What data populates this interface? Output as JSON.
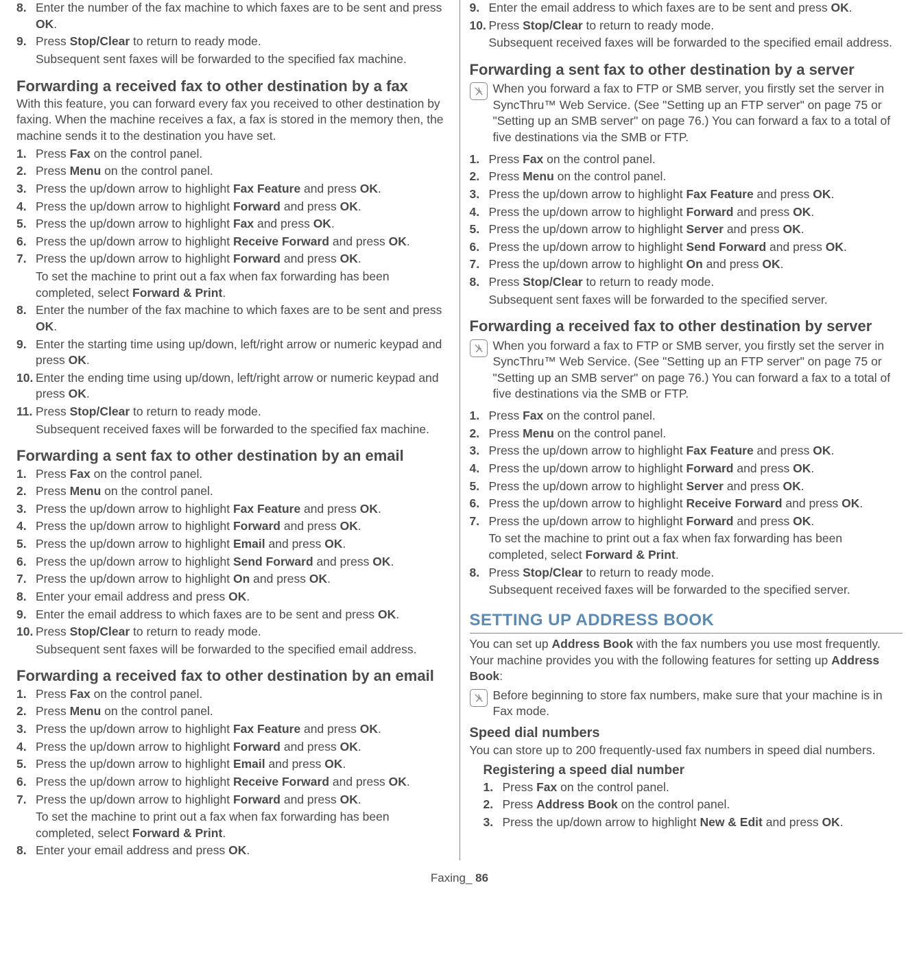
{
  "footer": {
    "label": "Faxing",
    "sep": "_ ",
    "page": "86"
  },
  "colors": {
    "heading_blue": "#5b8bb5",
    "text": "#4a4a4a",
    "rule": "#888888"
  },
  "left": {
    "topSteps": [
      {
        "n": "8.",
        "html": "Enter the number of the fax machine to which faxes are to be sent and press <b>OK</b>."
      },
      {
        "n": "9.",
        "html": "Press <b>Stop/Clear</b> to return to ready mode.",
        "sub": "Subsequent sent faxes will be forwarded to the specified fax machine."
      }
    ],
    "s1": {
      "title": "Forwarding a received fax to other destination by a fax",
      "intro": "With this feature, you can forward every fax you received to other destination by faxing. When the machine receives a fax, a fax is stored in the memory then, the machine sends it to the destination you have set.",
      "steps": [
        {
          "n": "1.",
          "html": "Press <b>Fax</b> on the control panel."
        },
        {
          "n": "2.",
          "html": "Press <b>Menu</b> on the control panel."
        },
        {
          "n": "3.",
          "html": "Press the up/down arrow to highlight <b>Fax Feature</b> and press <b>OK</b>."
        },
        {
          "n": "4.",
          "html": "Press the up/down arrow to highlight <b>Forward</b> and press <b>OK</b>."
        },
        {
          "n": "5.",
          "html": "Press the up/down arrow to highlight <b>Fax</b> and press <b>OK</b>."
        },
        {
          "n": "6.",
          "html": "Press the up/down arrow to highlight <b>Receive Forward</b> and press <b>OK</b>."
        },
        {
          "n": "7.",
          "html": "Press the up/down arrow to highlight <b>Forward</b> and press <b>OK</b>.",
          "sub": "To set the machine to print out a fax when fax forwarding has been completed, select <b>Forward & Print</b>."
        },
        {
          "n": "8.",
          "html": "Enter the number of the fax machine to which faxes are to be sent and press <b>OK</b>."
        },
        {
          "n": "9.",
          "html": "Enter the starting time using up/down, left/right arrow or numeric keypad and press <b>OK</b>."
        },
        {
          "n": "10.",
          "html": "Enter the ending time using up/down, left/right arrow or numeric keypad and press <b>OK</b>."
        },
        {
          "n": "11.",
          "html": "Press <b>Stop/Clear</b> to return to ready mode.",
          "sub": "Subsequent received faxes will be forwarded to the specified fax machine."
        }
      ]
    },
    "s2": {
      "title": "Forwarding a sent fax to other destination by an email",
      "steps": [
        {
          "n": "1.",
          "html": "Press <b>Fax</b> on the control panel."
        },
        {
          "n": "2.",
          "html": "Press <b>Menu</b> on the control panel."
        },
        {
          "n": "3.",
          "html": "Press the up/down arrow to highlight <b>Fax Feature</b> and press <b>OK</b>."
        },
        {
          "n": "4.",
          "html": "Press the up/down arrow to highlight <b>Forward</b> and press <b>OK</b>."
        },
        {
          "n": "5.",
          "html": "Press the up/down arrow to highlight <b>Email</b> and press <b>OK</b>."
        },
        {
          "n": "6.",
          "html": "Press the up/down arrow to highlight <b>Send Forward</b> and press <b>OK</b>."
        },
        {
          "n": "7.",
          "html": "Press the up/down arrow to highlight <b>On</b> and press <b>OK</b>."
        },
        {
          "n": "8.",
          "html": "Enter your email address and press <b>OK</b>."
        },
        {
          "n": "9.",
          "html": "Enter the email address to which faxes are to be sent and press <b>OK</b>."
        },
        {
          "n": "10.",
          "html": "Press <b>Stop/Clear</b> to return to ready mode.",
          "sub": "Subsequent sent faxes will be forwarded to the specified email address."
        }
      ]
    },
    "s3": {
      "title": "Forwarding a received fax to other destination by an email",
      "steps": [
        {
          "n": "1.",
          "html": "Press <b>Fax</b> on the control panel."
        },
        {
          "n": "2.",
          "html": "Press <b>Menu</b> on the control panel."
        },
        {
          "n": "3.",
          "html": "Press the up/down arrow to highlight <b>Fax Feature</b> and press <b>OK</b>."
        },
        {
          "n": "4.",
          "html": "Press the up/down arrow to highlight <b>Forward</b> and press <b>OK</b>."
        },
        {
          "n": "5.",
          "html": "Press the up/down arrow to highlight <b>Email</b> and press <b>OK</b>."
        },
        {
          "n": "6.",
          "html": "Press the up/down arrow to highlight <b>Receive Forward</b> and press <b>OK</b>."
        },
        {
          "n": "7.",
          "html": "Press the up/down arrow to highlight <b>Forward</b> and press <b>OK</b>.",
          "sub": "To set the machine to print out a fax when fax forwarding has been completed, select <b>Forward & Print</b>."
        },
        {
          "n": "8.",
          "html": "Enter your email address and press <b>OK</b>."
        }
      ]
    }
  },
  "right": {
    "topSteps": [
      {
        "n": "9.",
        "html": "Enter the email address to which faxes are to be sent and press <b>OK</b>."
      },
      {
        "n": "10.",
        "html": "Press <b>Stop/Clear</b> to return to ready mode.",
        "sub": "Subsequent received faxes will be forwarded to the specified email address."
      }
    ],
    "s1": {
      "title": "Forwarding a sent fax to other destination by a server",
      "note": "When you forward a fax to FTP or SMB server, you firstly set the server in SyncThru™ Web Service. (See \"Setting up an FTP server\" on page 75 or \"Setting up an SMB server\" on page 76.) You can forward a fax to a total of five destinations via the SMB or FTP.",
      "steps": [
        {
          "n": "1.",
          "html": "Press <b>Fax</b> on the control panel."
        },
        {
          "n": "2.",
          "html": "Press <b>Menu</b> on the control panel."
        },
        {
          "n": "3.",
          "html": "Press the up/down arrow to highlight <b>Fax Feature</b> and press <b>OK</b>."
        },
        {
          "n": "4.",
          "html": "Press the up/down arrow to highlight <b>Forward</b> and press <b>OK</b>."
        },
        {
          "n": "5.",
          "html": "Press the up/down arrow to highlight <b>Server</b> and press <b>OK</b>."
        },
        {
          "n": "6.",
          "html": "Press the up/down arrow to highlight <b>Send Forward</b> and press <b>OK</b>."
        },
        {
          "n": "7.",
          "html": "Press the up/down arrow to highlight <b>On</b> and press <b>OK</b>."
        },
        {
          "n": "8.",
          "html": "Press <b>Stop/Clear</b> to return to ready mode.",
          "sub": "Subsequent sent faxes will be forwarded to the specified server."
        }
      ]
    },
    "s2": {
      "title": "Forwarding a received fax to other destination by server",
      "note": "When you forward a fax to FTP or SMB server, you firstly set the server in SyncThru™ Web Service. (See \"Setting up an FTP server\" on page 75 or \"Setting up an SMB server\" on page 76.) You can forward a fax to a total of five destinations via the SMB or FTP.",
      "steps": [
        {
          "n": "1.",
          "html": "Press <b>Fax</b> on the control panel."
        },
        {
          "n": "2.",
          "html": "Press <b>Menu</b> on the control panel."
        },
        {
          "n": "3.",
          "html": "Press the up/down arrow to highlight <b>Fax Feature</b> and press <b>OK</b>."
        },
        {
          "n": "4.",
          "html": "Press the up/down arrow to highlight <b>Forward</b> and press <b>OK</b>."
        },
        {
          "n": "5.",
          "html": "Press the up/down arrow to highlight <b>Server</b> and press <b>OK</b>."
        },
        {
          "n": "6.",
          "html": "Press the up/down arrow to highlight <b>Receive Forward</b> and press <b>OK</b>."
        },
        {
          "n": "7.",
          "html": "Press the up/down arrow to highlight <b>Forward</b> and press <b>OK</b>.",
          "sub": "To set the machine to print out a fax when fax forwarding has been completed, select <b>Forward & Print</b>."
        },
        {
          "n": "8.",
          "html": "Press <b>Stop/Clear</b> to return to ready mode.",
          "sub": "Subsequent received faxes will be forwarded to the specified server."
        }
      ]
    },
    "major": {
      "title": "SETTING UP ADDRESS BOOK",
      "intro": "You can set up <b>Address Book</b> with the fax numbers you use most frequently. Your machine provides you with the following features for setting up <b>Address Book</b>:",
      "note": "Before beginning to store fax numbers, make sure that your machine is in Fax mode."
    },
    "s3": {
      "title": "Speed dial numbers",
      "intro": "You can store up to 200 frequently-used fax numbers in speed dial numbers.",
      "sub": {
        "title": "Registering a speed dial number",
        "steps": [
          {
            "n": "1.",
            "html": "Press <b>Fax</b> on the control panel."
          },
          {
            "n": "2.",
            "html": "Press <b>Address Book</b> on the control panel."
          },
          {
            "n": "3.",
            "html": "Press the up/down arrow to highlight <b>New & Edit</b> and press <b>OK</b>."
          }
        ]
      }
    }
  }
}
